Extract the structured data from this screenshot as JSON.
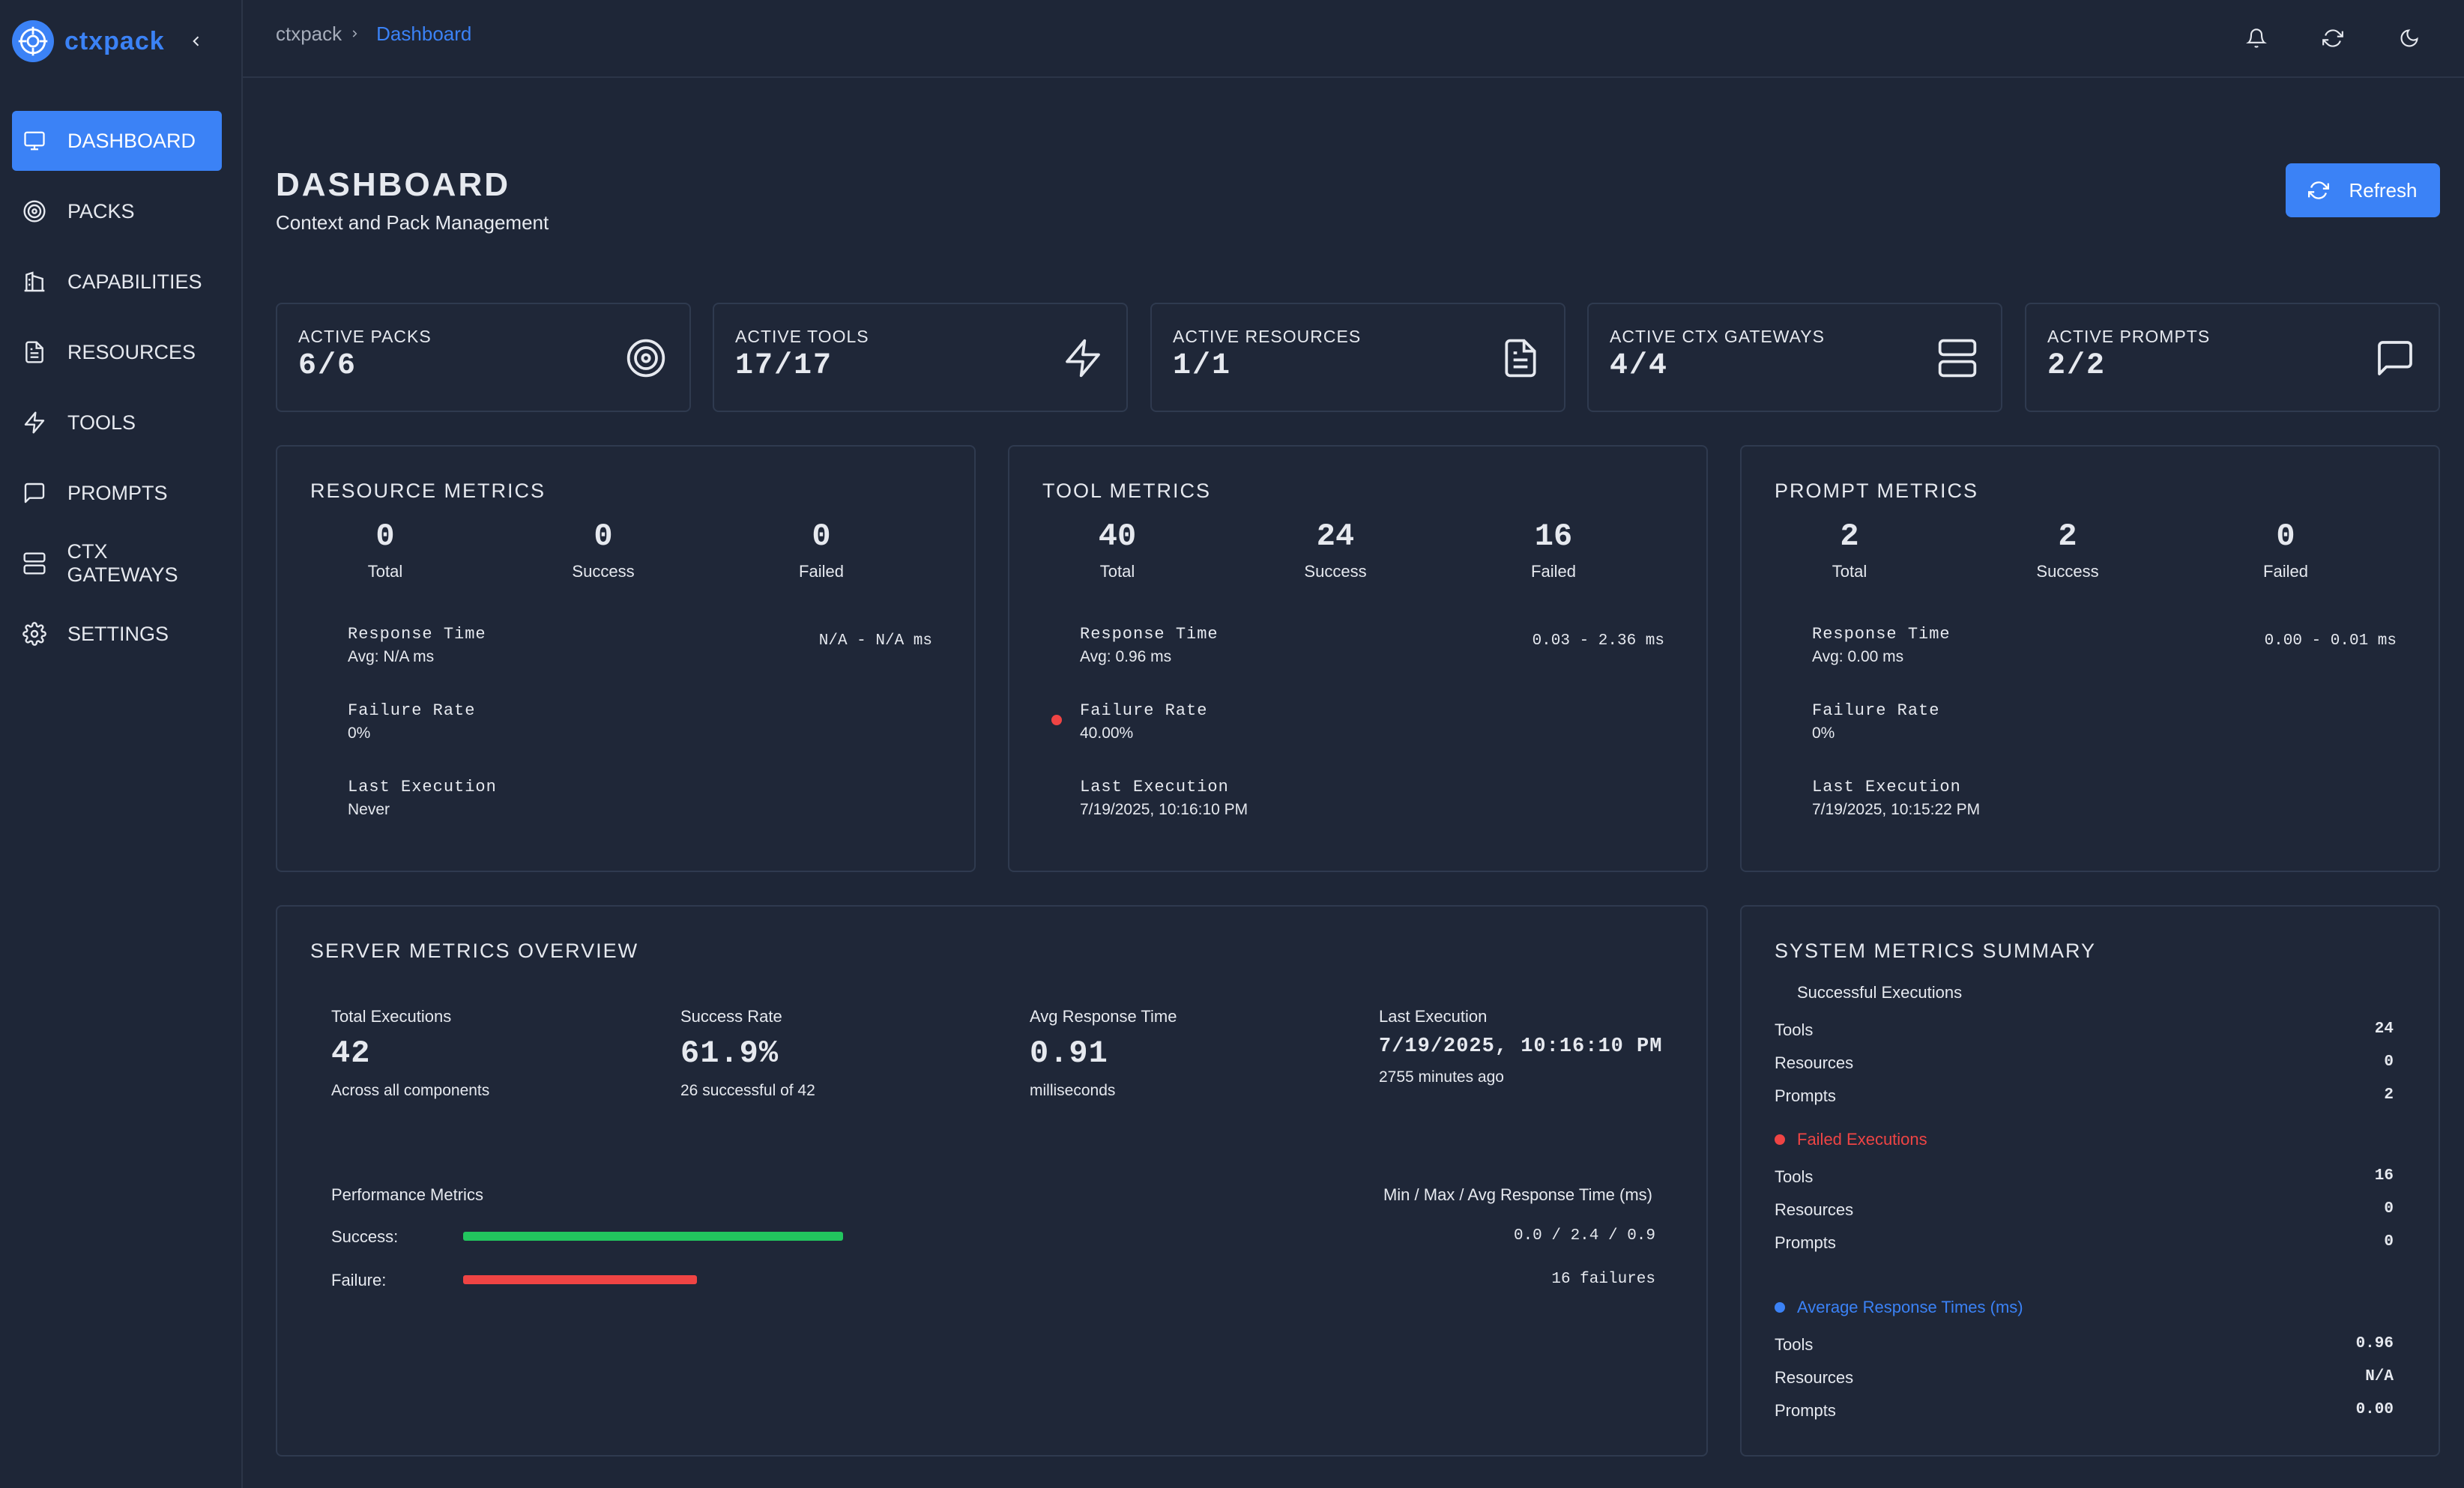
{
  "app": {
    "name": "ctxpack"
  },
  "sidebar": {
    "items": [
      {
        "label": "DASHBOARD",
        "icon": "monitor-icon"
      },
      {
        "label": "PACKS",
        "icon": "target-icon"
      },
      {
        "label": "CAPABILITIES",
        "icon": "columns-icon"
      },
      {
        "label": "RESOURCES",
        "icon": "file-text-icon"
      },
      {
        "label": "TOOLS",
        "icon": "lightning-icon"
      },
      {
        "label": "PROMPTS",
        "icon": "message-square-icon"
      },
      {
        "label": "CTX GATEWAYS",
        "icon": "server-icon"
      },
      {
        "label": "SETTINGS",
        "icon": "gear-icon"
      }
    ]
  },
  "breadcrumb": {
    "root": "ctxpack",
    "current": "Dashboard"
  },
  "header": {
    "title": "DASHBOARD",
    "subtitle": "Context and Pack Management",
    "refresh_label": "Refresh"
  },
  "stats": [
    {
      "label": "ACTIVE PACKS",
      "value": "6/6",
      "icon": "target-icon"
    },
    {
      "label": "ACTIVE TOOLS",
      "value": "17/17",
      "icon": "lightning-icon"
    },
    {
      "label": "ACTIVE RESOURCES",
      "value": "1/1",
      "icon": "file-text-icon"
    },
    {
      "label": "ACTIVE CTX GATEWAYS",
      "value": "4/4",
      "icon": "server-icon"
    },
    {
      "label": "ACTIVE PROMPTS",
      "value": "2/2",
      "icon": "message-square-icon"
    }
  ],
  "metrics": {
    "resource": {
      "title": "RESOURCE METRICS",
      "total": "0",
      "success": "0",
      "failed": "0",
      "total_label": "Total",
      "success_label": "Success",
      "failed_label": "Failed",
      "response_label": "Response Time",
      "response_avg": "Avg: N/A ms",
      "response_range": "N/A - N/A ms",
      "failure_label": "Failure Rate",
      "failure_rate": "0%",
      "last_label": "Last Execution",
      "last_exec": "Never"
    },
    "tool": {
      "title": "TOOL METRICS",
      "total": "40",
      "success": "24",
      "failed": "16",
      "total_label": "Total",
      "success_label": "Success",
      "failed_label": "Failed",
      "response_label": "Response Time",
      "response_avg": "Avg: 0.96 ms",
      "response_range": "0.03 - 2.36 ms",
      "failure_label": "Failure Rate",
      "failure_rate": "40.00%",
      "last_label": "Last Execution",
      "last_exec": "7/19/2025, 10:16:10 PM"
    },
    "prompt": {
      "title": "PROMPT METRICS",
      "total": "2",
      "success": "2",
      "failed": "0",
      "total_label": "Total",
      "success_label": "Success",
      "failed_label": "Failed",
      "response_label": "Response Time",
      "response_avg": "Avg: 0.00 ms",
      "response_range": "0.00 - 0.01 ms",
      "failure_label": "Failure Rate",
      "failure_rate": "0%",
      "last_label": "Last Execution",
      "last_exec": "7/19/2025, 10:15:22 PM"
    }
  },
  "server_overview": {
    "title": "SERVER METRICS OVERVIEW",
    "total_exec_label": "Total Executions",
    "total_exec": "42",
    "total_exec_sub": "Across all components",
    "success_rate_label": "Success Rate",
    "success_rate": "61.9%",
    "success_rate_sub": "26 successful of 42",
    "avg_resp_label": "Avg Response Time",
    "avg_resp": "0.91",
    "avg_resp_sub": "milliseconds",
    "last_exec_label": "Last Execution",
    "last_exec": "7/19/2025, 10:16:10 PM",
    "last_exec_sub": "2755 minutes ago",
    "perf_label": "Performance Metrics",
    "perf_right_label": "Min / Max / Avg Response Time (ms)",
    "success_label": "Success:",
    "success_value": "0.0 / 2.4 / 0.9",
    "success_fraction": 0.619,
    "failure_label": "Failure:",
    "failure_value": "16 failures",
    "failure_fraction": 0.381
  },
  "summary": {
    "title": "SYSTEM METRICS SUMMARY",
    "successful_label": "Successful Executions",
    "successful": [
      {
        "k": "Tools",
        "v": "24"
      },
      {
        "k": "Resources",
        "v": "0"
      },
      {
        "k": "Prompts",
        "v": "2"
      }
    ],
    "failed_label": "Failed Executions",
    "failed": [
      {
        "k": "Tools",
        "v": "16"
      },
      {
        "k": "Resources",
        "v": "0"
      },
      {
        "k": "Prompts",
        "v": "0"
      }
    ],
    "avg_label": "Average Response Times (ms)",
    "avg": [
      {
        "k": "Tools",
        "v": "0.96"
      },
      {
        "k": "Resources",
        "v": "N/A"
      },
      {
        "k": "Prompts",
        "v": "0.00"
      }
    ]
  },
  "colors": {
    "accent": "#3b82f6",
    "success": "#22c55e",
    "failure": "#ef4444",
    "background": "#1e2637"
  }
}
